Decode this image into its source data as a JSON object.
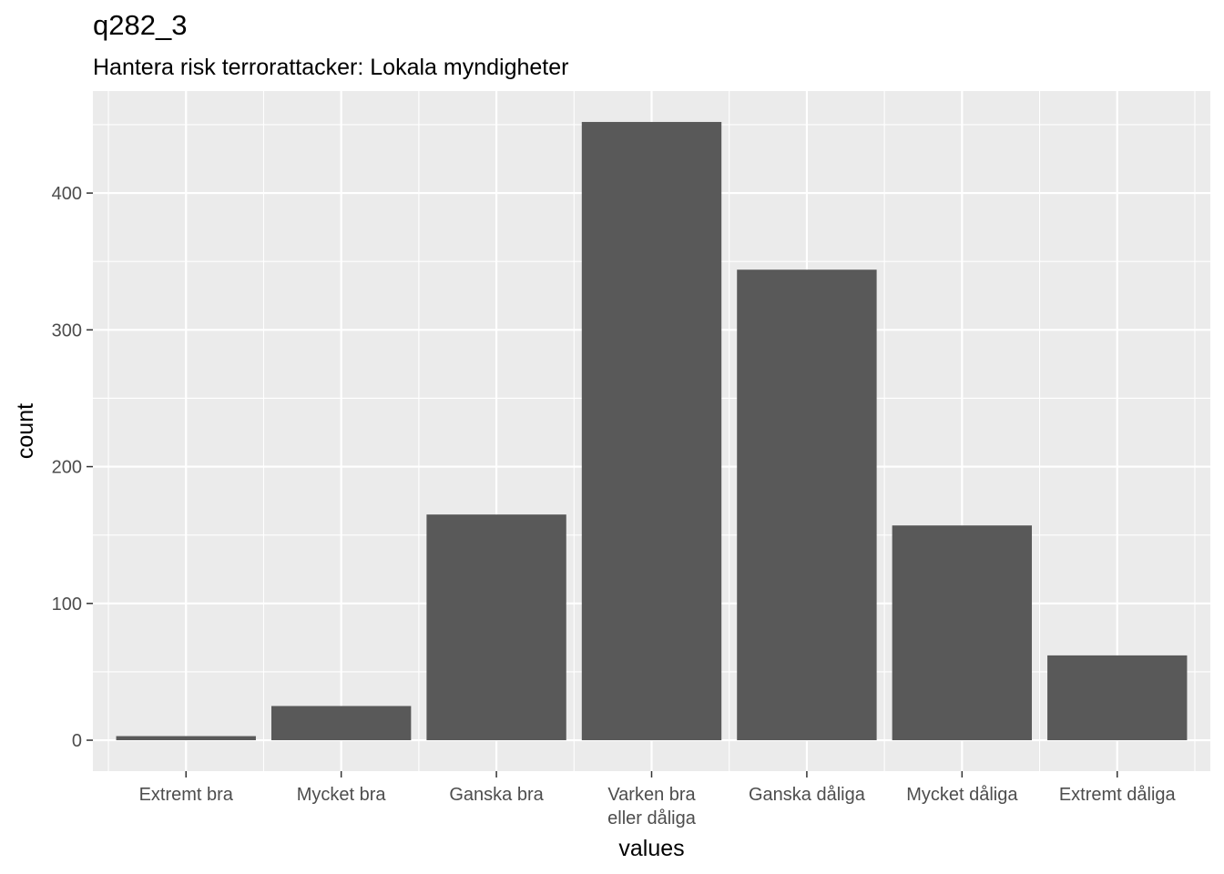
{
  "chart_data": {
    "type": "bar",
    "title": "q282_3",
    "subtitle": "Hantera risk terrorattacker: Lokala myndigheter",
    "xlabel": "values",
    "ylabel": "count",
    "categories": [
      [
        "Extremt bra"
      ],
      [
        "Mycket bra"
      ],
      [
        "Ganska bra"
      ],
      [
        "Varken bra",
        "eller dåliga"
      ],
      [
        "Ganska dåliga"
      ],
      [
        "Mycket dåliga"
      ],
      [
        "Extremt dåliga"
      ]
    ],
    "values": [
      3,
      25,
      165,
      452,
      344,
      157,
      62
    ],
    "ylim": [
      -22.6,
      474.6
    ],
    "yticks": [
      0,
      100,
      200,
      300,
      400
    ],
    "grid": true,
    "colors": {
      "panel": "#ebebeb",
      "grid": "#ffffff",
      "bar": "#595959",
      "tick_text": "#4d4d4d",
      "tick_mark": "#333333"
    }
  }
}
